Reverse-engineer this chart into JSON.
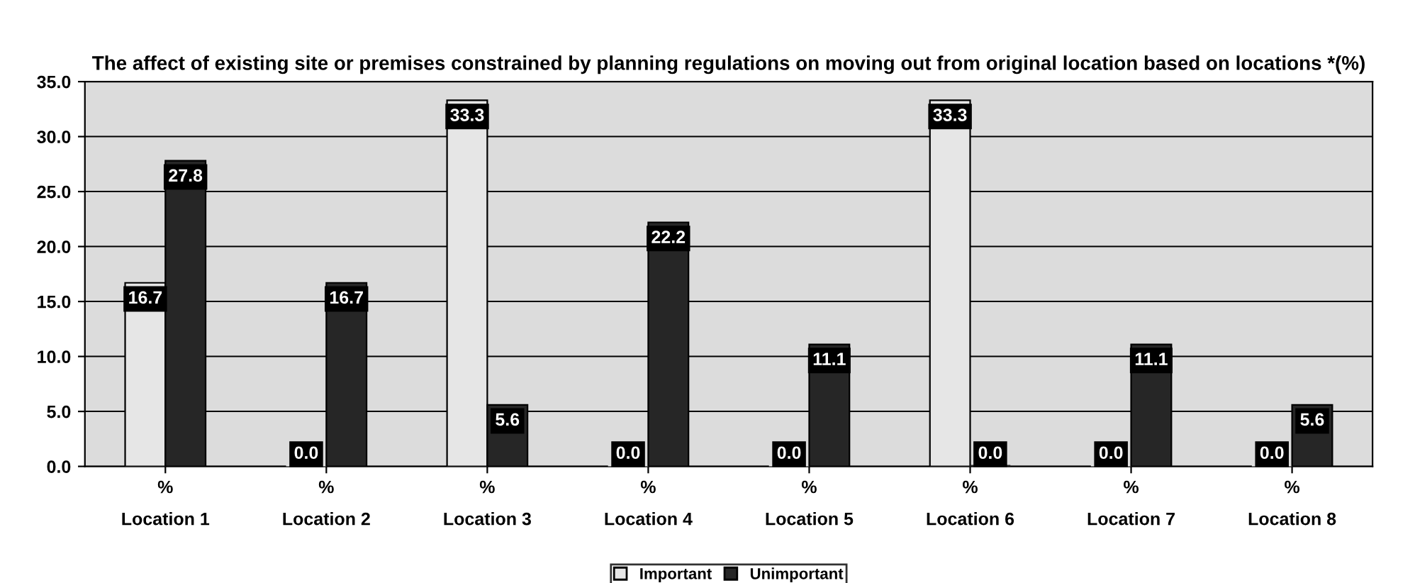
{
  "chart_data": {
    "type": "bar",
    "title": "The affect of existing site or premises constrained by planning regulations on moving out from original location based on locations *(%)",
    "categories": [
      "%\nLocation 1",
      "%\nLocation 2",
      "%\nLocation 3",
      "%\nLocation 4",
      "%\nLocation 5",
      "%\nLocation 6",
      "%\nLocation 7",
      "%\nLocation 8"
    ],
    "series": [
      {
        "name": "Important",
        "color": "#e6e6e6",
        "values": [
          16.7,
          0.0,
          33.3,
          0.0,
          0.0,
          33.3,
          0.0,
          0.0
        ],
        "value_labels": [
          "16.7",
          "0.0",
          "33.3",
          "0.0",
          "0.0",
          "33.3",
          "0.0",
          "0.0"
        ]
      },
      {
        "name": "Unimportant",
        "color": "#262626",
        "values": [
          27.8,
          16.7,
          5.6,
          22.2,
          11.1,
          0.0,
          11.1,
          5.6
        ],
        "value_labels": [
          "27.8",
          "16.7",
          "5.6",
          "22.2",
          "11.1",
          "0.0",
          "11.1",
          "5.6"
        ]
      }
    ],
    "ylim": [
      0,
      35
    ],
    "yticks": [
      {
        "value": 0,
        "label": "0.0"
      },
      {
        "value": 5,
        "label": "5.0"
      },
      {
        "value": 10,
        "label": "10.0"
      },
      {
        "value": 15,
        "label": "15.0"
      },
      {
        "value": 20,
        "label": "20.0"
      },
      {
        "value": 25,
        "label": "25.0"
      },
      {
        "value": 30,
        "label": "30.0"
      },
      {
        "value": 35,
        "label": "35.0"
      }
    ],
    "grid": "y",
    "legend": "bottom"
  }
}
